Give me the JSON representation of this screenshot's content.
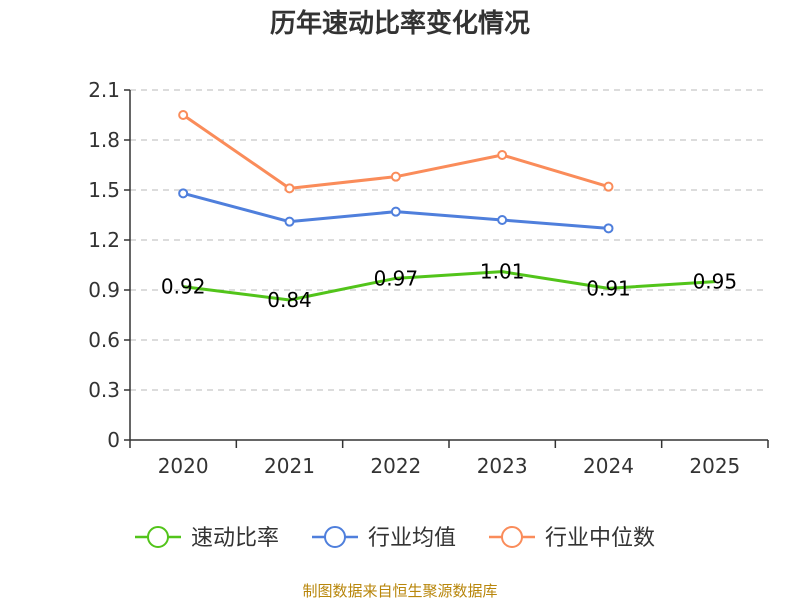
{
  "chart_data": {
    "type": "line",
    "title": "历年速动比率变化情况",
    "categories": [
      "2020",
      "2021",
      "2022",
      "2023",
      "2024",
      "2025"
    ],
    "ylim": [
      0,
      2.1
    ],
    "yticks": [
      "0",
      "0.3",
      "0.6",
      "0.9",
      "1.2",
      "1.5",
      "1.8",
      "2.1"
    ],
    "ytick_values": [
      0,
      0.3,
      0.6,
      0.9,
      1.2,
      1.5,
      1.8,
      2.1
    ],
    "grid": true,
    "legend_position": "bottom",
    "series": [
      {
        "name": "速动比率",
        "color": "#52c41a",
        "values": [
          0.92,
          0.84,
          0.97,
          1.01,
          0.91,
          0.95
        ],
        "labels": [
          "0.92",
          "0.84",
          "0.97",
          "1.01",
          "0.91",
          "0.95"
        ],
        "show_markers": false
      },
      {
        "name": "行业均值",
        "color": "#4f7fdc",
        "values": [
          1.48,
          1.31,
          1.37,
          1.32,
          1.27,
          null
        ],
        "show_markers": true
      },
      {
        "name": "行业中位数",
        "color": "#fa8c5a",
        "values": [
          1.95,
          1.51,
          1.58,
          1.71,
          1.52,
          null
        ],
        "show_markers": true
      }
    ]
  },
  "source": "制图数据来自恒生聚源数据库"
}
